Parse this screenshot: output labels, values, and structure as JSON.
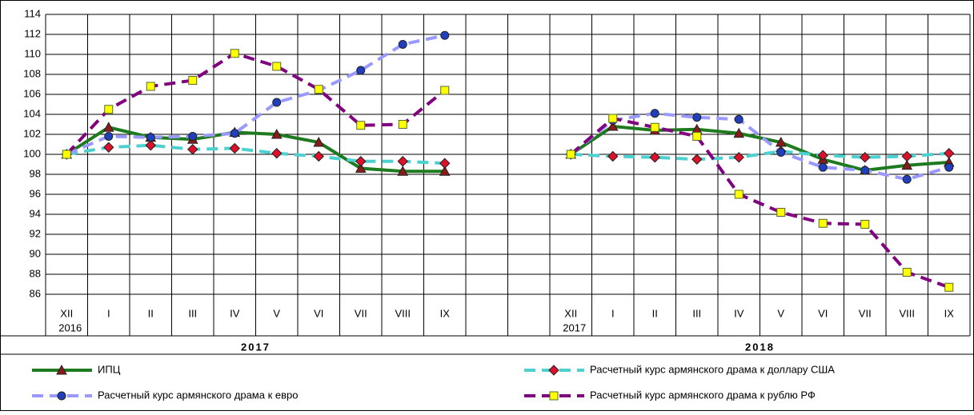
{
  "chart_data": {
    "type": "line",
    "categories": [
      "XII",
      "I",
      "II",
      "III",
      "IV",
      "V",
      "VI",
      "VII",
      "VIII",
      "IX",
      null,
      null,
      "XII",
      "I",
      "II",
      "III",
      "IV",
      "V",
      "VI",
      "VII",
      "VIII",
      "IX"
    ],
    "x_sublabels": [
      "2016",
      null,
      null,
      null,
      null,
      null,
      null,
      null,
      null,
      null,
      null,
      null,
      "2017",
      null,
      null,
      null,
      null,
      null,
      null,
      null,
      null,
      null
    ],
    "groups": [
      {
        "label": "2017",
        "from": 0,
        "to": 9
      },
      {
        "label": "2018",
        "from": 12,
        "to": 21
      }
    ],
    "ylim": [
      86,
      114
    ],
    "yticks": [
      86,
      88,
      90,
      92,
      94,
      96,
      98,
      100,
      102,
      104,
      106,
      108,
      110,
      112,
      114
    ],
    "grid": true,
    "series": [
      {
        "name": "ИПЦ",
        "color": "#1e7a1e",
        "line_style": "solid",
        "marker": "triangle",
        "marker_color": "#8b1a1a",
        "values": [
          100,
          102.7,
          101.7,
          101.5,
          102.2,
          102.0,
          101.2,
          98.6,
          98.3,
          98.3,
          null,
          null,
          100,
          102.8,
          102.4,
          102.5,
          102.1,
          101.2,
          99.5,
          98.4,
          98.9,
          99.2
        ]
      },
      {
        "name": "Расчетный курс армянского драма к доллару США",
        "color": "#4dd0d0",
        "line_style": "dashed",
        "marker": "diamond",
        "marker_color": "#e0102a",
        "values": [
          100,
          100.7,
          100.9,
          100.5,
          100.6,
          100.1,
          99.8,
          99.3,
          99.3,
          99.1,
          null,
          null,
          100,
          99.8,
          99.7,
          99.5,
          99.7,
          100.3,
          99.9,
          99.7,
          99.8,
          100.1
        ]
      },
      {
        "name": "Расчетный курс армянского драма к евро",
        "color": "#9999ff",
        "line_style": "dashed",
        "marker": "circle",
        "marker_color": "#1f3fbf",
        "values": [
          100,
          101.8,
          101.7,
          101.8,
          102.1,
          105.2,
          106.4,
          108.4,
          111.0,
          111.9,
          null,
          null,
          100,
          103.4,
          104.1,
          103.7,
          103.5,
          100.2,
          98.7,
          98.4,
          97.5,
          98.7
        ]
      },
      {
        "name": "Расчетный курс армянского драма к рублю РФ",
        "color": "#800080",
        "line_style": "dashed",
        "marker": "square",
        "marker_color": "#ffff00",
        "values": [
          100,
          104.5,
          106.8,
          107.4,
          110.1,
          108.8,
          106.5,
          102.9,
          103.0,
          106.4,
          null,
          null,
          100,
          103.6,
          102.7,
          101.8,
          96.0,
          94.2,
          93.1,
          93.0,
          88.2,
          86.7
        ]
      }
    ]
  }
}
